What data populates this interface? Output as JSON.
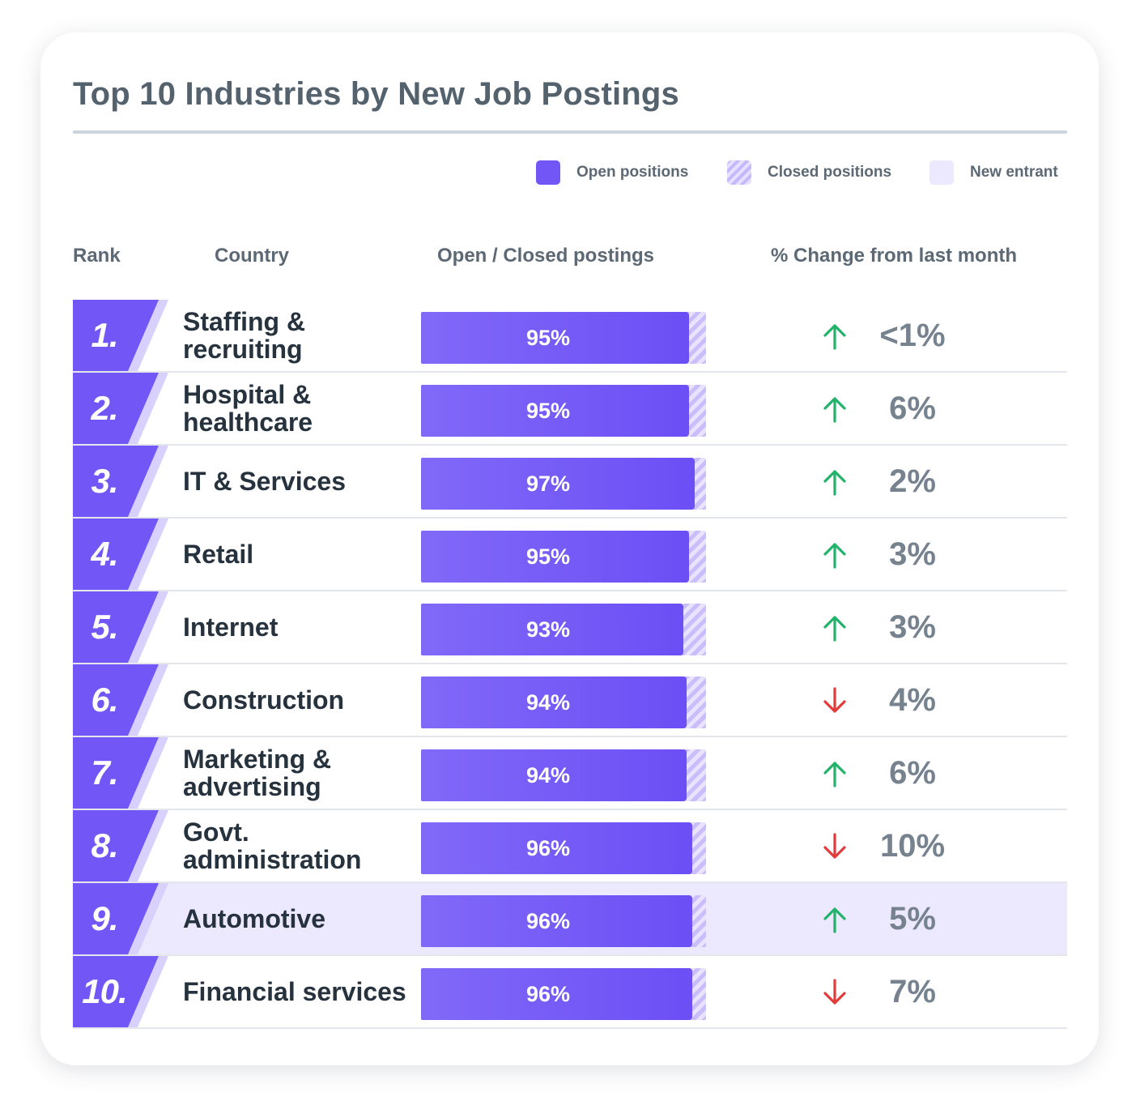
{
  "title": "Top 10 Industries by New Job Postings",
  "legend": {
    "open": "Open positions",
    "closed": "Closed positions",
    "new_entrant": "New entrant"
  },
  "columns": {
    "rank": "Rank",
    "country": "Country",
    "postings": "Open / Closed postings",
    "change": "% Change from last month"
  },
  "colors": {
    "open": "#7357f6",
    "closed": "#d6ccfc",
    "new_entrant": "#ece8fe",
    "up": "#22b36a",
    "down": "#e23b3b",
    "rank_badge": "#7357f6"
  },
  "chart_data": {
    "type": "bar",
    "title": "Top 10 Industries by New Job Postings",
    "xlabel": "Open / Closed postings",
    "ylabel": "Country",
    "ylim": [
      0,
      100
    ],
    "categories": [
      "Staffing & recruiting",
      "Hospital & healthcare",
      "IT & Services",
      "Retail",
      "Internet",
      "Construction",
      "Marketing & advertising",
      "Govt. administration",
      "Automotive",
      "Financial services"
    ],
    "rows": [
      {
        "rank": "1.",
        "industry": "Staffing & recruiting",
        "open_pct": 95,
        "label": "95%",
        "direction": "up",
        "change": "<1%",
        "new_entrant": false
      },
      {
        "rank": "2.",
        "industry": "Hospital & healthcare",
        "open_pct": 95,
        "label": "95%",
        "direction": "up",
        "change": "6%",
        "new_entrant": false
      },
      {
        "rank": "3.",
        "industry": "IT & Services",
        "open_pct": 97,
        "label": "97%",
        "direction": "up",
        "change": "2%",
        "new_entrant": false
      },
      {
        "rank": "4.",
        "industry": "Retail",
        "open_pct": 95,
        "label": "95%",
        "direction": "up",
        "change": "3%",
        "new_entrant": false
      },
      {
        "rank": "5.",
        "industry": "Internet",
        "open_pct": 93,
        "label": "93%",
        "direction": "up",
        "change": "3%",
        "new_entrant": false
      },
      {
        "rank": "6.",
        "industry": "Construction",
        "open_pct": 94,
        "label": "94%",
        "direction": "down",
        "change": "4%",
        "new_entrant": false
      },
      {
        "rank": "7.",
        "industry": "Marketing & advertising",
        "open_pct": 94,
        "label": "94%",
        "direction": "up",
        "change": "6%",
        "new_entrant": false
      },
      {
        "rank": "8.",
        "industry": "Govt. administration",
        "open_pct": 96,
        "label": "96%",
        "direction": "down",
        "change": "10%",
        "new_entrant": false
      },
      {
        "rank": "9.",
        "industry": "Automotive",
        "open_pct": 96,
        "label": "96%",
        "direction": "up",
        "change": "5%",
        "new_entrant": true
      },
      {
        "rank": "10.",
        "industry": "Financial services",
        "open_pct": 96,
        "label": "96%",
        "direction": "down",
        "change": "7%",
        "new_entrant": false
      }
    ]
  }
}
